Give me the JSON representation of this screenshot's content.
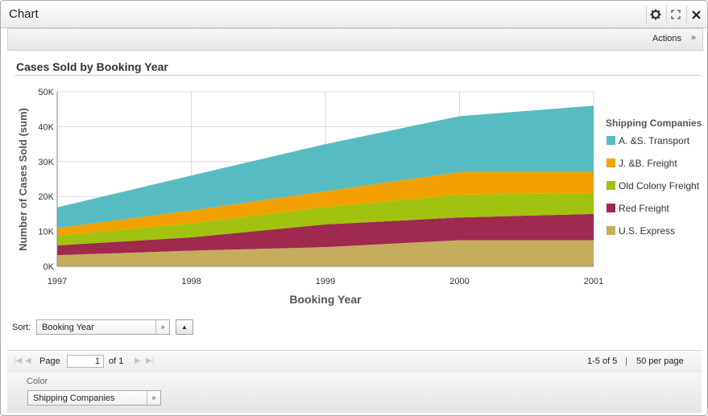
{
  "window": {
    "title": "Chart"
  },
  "toolbar": {
    "actions_label": "Actions"
  },
  "chart_data": {
    "type": "area",
    "stacked": true,
    "title": "Cases Sold by Booking Year",
    "xlabel": "Booking Year",
    "ylabel": "Number of Cases Sold (sum)",
    "ylim": [
      0,
      50000
    ],
    "y_ticks": [
      "0K",
      "10K",
      "20K",
      "30K",
      "40K",
      "50K"
    ],
    "categories": [
      "1997",
      "1998",
      "1999",
      "2000",
      "2001"
    ],
    "legend_title": "Shipping Companies",
    "legend_position": "right",
    "series": [
      {
        "name": "U.S. Express",
        "color": "#c4ad5c",
        "values": [
          3200,
          4500,
          5500,
          7500,
          7500
        ]
      },
      {
        "name": "Red Freight",
        "color": "#a0294f",
        "values": [
          2800,
          3800,
          6500,
          6500,
          7500
        ]
      },
      {
        "name": "Old Colony Freight",
        "color": "#a1c20f",
        "values": [
          2800,
          4000,
          5000,
          6500,
          6000
        ]
      },
      {
        "name": "J. &B. Freight",
        "color": "#f3a100",
        "values": [
          2200,
          3700,
          4500,
          6500,
          6000
        ]
      },
      {
        "name": "A. &S. Transport",
        "color": "#56bcc2",
        "values": [
          5900,
          10000,
          13500,
          16000,
          19000
        ]
      }
    ]
  },
  "sort": {
    "label": "Sort:",
    "value": "Booking Year"
  },
  "pager": {
    "page_label": "Page",
    "page_value": "1",
    "of_label": "of 1",
    "range_text": "1-5 of 5",
    "separator": "|",
    "per_page_text": "50 per page"
  },
  "color_panel": {
    "label": "Color",
    "value": "Shipping Companies"
  }
}
